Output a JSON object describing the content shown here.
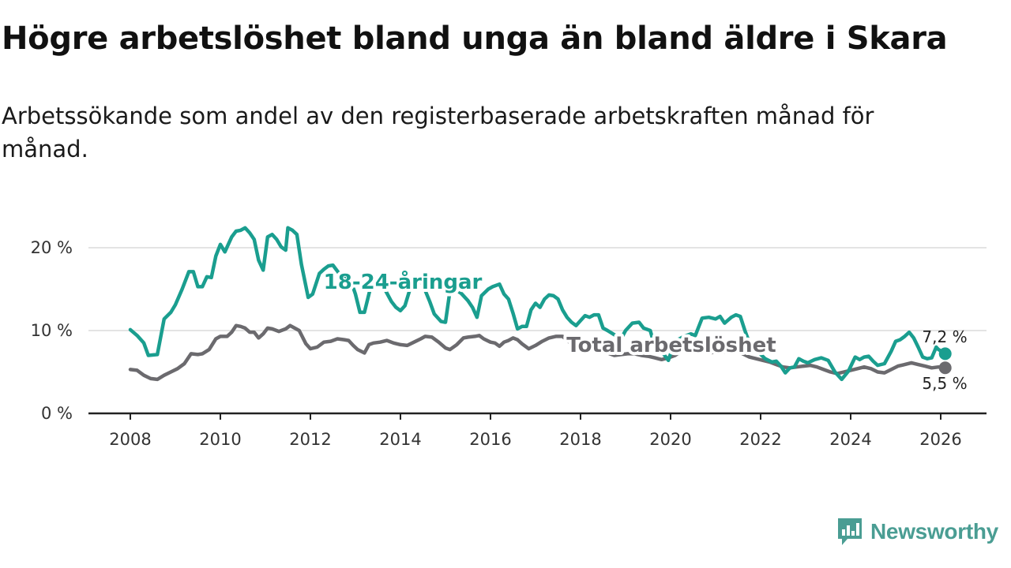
{
  "header": {
    "title": "Högre arbetslöshet bland unga än bland äldre i Skara",
    "subtitle": "Arbetssökande som andel av den registerbaserade arbetskraften månad för månad."
  },
  "brand": {
    "name": "Newsworthy",
    "color": "#4a9d93"
  },
  "chart_data": {
    "type": "line",
    "title": "Högre arbetslöshet bland unga än bland äldre i Skara",
    "xlabel": "",
    "ylabel": "",
    "xlim": [
      2008,
      2026.2
    ],
    "ylim": [
      0,
      22
    ],
    "x_ticks": [
      {
        "value": 2008,
        "label": "2008"
      },
      {
        "value": 2010,
        "label": "2010"
      },
      {
        "value": 2012,
        "label": "2012"
      },
      {
        "value": 2014,
        "label": "2014"
      },
      {
        "value": 2016,
        "label": "2016"
      },
      {
        "value": 2018,
        "label": "2018"
      },
      {
        "value": 2020,
        "label": "2020"
      },
      {
        "value": 2022,
        "label": "2022"
      },
      {
        "value": 2024,
        "label": "2024"
      },
      {
        "value": 2026,
        "label": "2026"
      }
    ],
    "y_ticks": [
      {
        "value": 0,
        "label": "0 %"
      },
      {
        "value": 10,
        "label": "10 %"
      },
      {
        "value": 20,
        "label": "20 %"
      }
    ],
    "grid": true,
    "series": [
      {
        "name": "18-24-åringar",
        "label": "18-24-åringar",
        "color": "#1a9e8f",
        "end_label": "7,2 %",
        "end_value": 7.2,
        "points": [
          [
            2008.0,
            10.1
          ],
          [
            2008.15,
            9.4
          ],
          [
            2008.3,
            8.5
          ],
          [
            2008.4,
            7.0
          ],
          [
            2008.6,
            7.1
          ],
          [
            2008.75,
            11.4
          ],
          [
            2008.9,
            12.2
          ],
          [
            2009.0,
            13.1
          ],
          [
            2009.15,
            15.0
          ],
          [
            2009.3,
            17.1
          ],
          [
            2009.4,
            17.1
          ],
          [
            2009.5,
            15.3
          ],
          [
            2009.6,
            15.3
          ],
          [
            2009.7,
            16.5
          ],
          [
            2009.8,
            16.4
          ],
          [
            2009.9,
            19.0
          ],
          [
            2010.0,
            20.4
          ],
          [
            2010.1,
            19.5
          ],
          [
            2010.25,
            21.3
          ],
          [
            2010.35,
            22.0
          ],
          [
            2010.45,
            22.1
          ],
          [
            2010.55,
            22.4
          ],
          [
            2010.65,
            21.8
          ],
          [
            2010.75,
            21.0
          ],
          [
            2010.85,
            18.5
          ],
          [
            2010.95,
            17.3
          ],
          [
            2011.05,
            21.3
          ],
          [
            2011.15,
            21.6
          ],
          [
            2011.25,
            21.0
          ],
          [
            2011.35,
            20.1
          ],
          [
            2011.45,
            19.7
          ],
          [
            2011.5,
            22.4
          ],
          [
            2011.6,
            22.1
          ],
          [
            2011.7,
            21.6
          ],
          [
            2011.8,
            18.0
          ],
          [
            2011.95,
            14.0
          ],
          [
            2012.05,
            14.4
          ],
          [
            2012.2,
            16.9
          ],
          [
            2012.3,
            17.4
          ],
          [
            2012.4,
            17.8
          ],
          [
            2012.5,
            17.9
          ],
          [
            2012.65,
            16.8
          ],
          [
            2012.8,
            16.5
          ],
          [
            2012.9,
            16.0
          ],
          [
            2013.0,
            14.4
          ],
          [
            2013.1,
            12.2
          ],
          [
            2013.2,
            12.2
          ],
          [
            2013.35,
            15.5
          ],
          [
            2013.5,
            16.0
          ],
          [
            2013.65,
            15.0
          ],
          [
            2013.8,
            13.5
          ],
          [
            2013.9,
            12.8
          ],
          [
            2014.0,
            12.4
          ],
          [
            2014.1,
            13.0
          ],
          [
            2014.25,
            15.7
          ],
          [
            2014.4,
            16.2
          ],
          [
            2014.5,
            15.5
          ],
          [
            2014.65,
            13.5
          ],
          [
            2014.75,
            12.0
          ],
          [
            2014.9,
            11.1
          ],
          [
            2015.0,
            11.0
          ],
          [
            2015.1,
            14.8
          ],
          [
            2015.2,
            15.0
          ],
          [
            2015.35,
            14.5
          ],
          [
            2015.5,
            13.6
          ],
          [
            2015.6,
            12.8
          ],
          [
            2015.7,
            11.6
          ],
          [
            2015.8,
            14.2
          ],
          [
            2015.95,
            15.0
          ],
          [
            2016.05,
            15.3
          ],
          [
            2016.2,
            15.6
          ],
          [
            2016.3,
            14.4
          ],
          [
            2016.4,
            13.8
          ],
          [
            2016.5,
            12.1
          ],
          [
            2016.6,
            10.2
          ],
          [
            2016.7,
            10.5
          ],
          [
            2016.8,
            10.5
          ],
          [
            2016.9,
            12.5
          ],
          [
            2017.0,
            13.3
          ],
          [
            2017.1,
            12.8
          ],
          [
            2017.2,
            13.8
          ],
          [
            2017.3,
            14.3
          ],
          [
            2017.4,
            14.2
          ],
          [
            2017.5,
            13.8
          ],
          [
            2017.6,
            12.5
          ],
          [
            2017.7,
            11.6
          ],
          [
            2017.8,
            11.0
          ],
          [
            2017.9,
            10.6
          ],
          [
            2018.0,
            11.2
          ],
          [
            2018.1,
            11.8
          ],
          [
            2018.2,
            11.6
          ],
          [
            2018.3,
            11.9
          ],
          [
            2018.4,
            11.9
          ],
          [
            2018.5,
            10.3
          ],
          [
            2018.6,
            10.0
          ],
          [
            2018.75,
            9.5
          ],
          [
            2018.9,
            9.0
          ],
          [
            2019.0,
            10.0
          ],
          [
            2019.15,
            10.9
          ],
          [
            2019.3,
            11.0
          ],
          [
            2019.4,
            10.3
          ],
          [
            2019.55,
            10.0
          ],
          [
            2019.65,
            8.0
          ],
          [
            2019.8,
            7.5
          ],
          [
            2019.95,
            6.4
          ],
          [
            2020.1,
            8.8
          ],
          [
            2020.2,
            9.0
          ],
          [
            2020.3,
            9.3
          ],
          [
            2020.45,
            9.6
          ],
          [
            2020.55,
            9.4
          ],
          [
            2020.7,
            11.5
          ],
          [
            2020.85,
            11.6
          ],
          [
            2021.0,
            11.4
          ],
          [
            2021.1,
            11.7
          ],
          [
            2021.2,
            10.9
          ],
          [
            2021.35,
            11.6
          ],
          [
            2021.45,
            11.9
          ],
          [
            2021.55,
            11.7
          ],
          [
            2021.65,
            10.0
          ],
          [
            2021.8,
            7.8
          ],
          [
            2021.95,
            7.4
          ],
          [
            2022.1,
            6.6
          ],
          [
            2022.25,
            6.2
          ],
          [
            2022.35,
            6.3
          ],
          [
            2022.45,
            5.7
          ],
          [
            2022.55,
            4.9
          ],
          [
            2022.65,
            5.5
          ],
          [
            2022.75,
            5.6
          ],
          [
            2022.85,
            6.6
          ],
          [
            2022.95,
            6.3
          ],
          [
            2023.05,
            6.1
          ],
          [
            2023.2,
            6.5
          ],
          [
            2023.35,
            6.7
          ],
          [
            2023.5,
            6.4
          ],
          [
            2023.65,
            5.0
          ],
          [
            2023.8,
            4.1
          ],
          [
            2023.95,
            5.1
          ],
          [
            2024.1,
            6.8
          ],
          [
            2024.2,
            6.5
          ],
          [
            2024.3,
            6.8
          ],
          [
            2024.4,
            6.9
          ],
          [
            2024.5,
            6.3
          ],
          [
            2024.6,
            5.8
          ],
          [
            2024.75,
            6.0
          ],
          [
            2024.9,
            7.5
          ],
          [
            2025.0,
            8.7
          ],
          [
            2025.1,
            8.9
          ],
          [
            2025.2,
            9.3
          ],
          [
            2025.3,
            9.8
          ],
          [
            2025.4,
            9.1
          ],
          [
            2025.5,
            8.0
          ],
          [
            2025.6,
            6.8
          ],
          [
            2025.7,
            6.6
          ],
          [
            2025.8,
            6.7
          ],
          [
            2025.9,
            8.0
          ],
          [
            2025.95,
            7.7
          ],
          [
            2026.05,
            7.4
          ],
          [
            2026.1,
            7.2
          ]
        ]
      },
      {
        "name": "Total arbetslöshet",
        "label": "Total arbetslöshet",
        "color": "#6b6a6e",
        "end_label": "5,5 %",
        "end_value": 5.5,
        "points": [
          [
            2008.0,
            5.3
          ],
          [
            2008.15,
            5.2
          ],
          [
            2008.3,
            4.6
          ],
          [
            2008.45,
            4.2
          ],
          [
            2008.6,
            4.1
          ],
          [
            2008.75,
            4.6
          ],
          [
            2008.9,
            5.0
          ],
          [
            2009.05,
            5.4
          ],
          [
            2009.2,
            6.0
          ],
          [
            2009.35,
            7.2
          ],
          [
            2009.5,
            7.1
          ],
          [
            2009.6,
            7.2
          ],
          [
            2009.75,
            7.7
          ],
          [
            2009.9,
            9.0
          ],
          [
            2010.0,
            9.3
          ],
          [
            2010.15,
            9.3
          ],
          [
            2010.25,
            9.8
          ],
          [
            2010.35,
            10.6
          ],
          [
            2010.45,
            10.5
          ],
          [
            2010.55,
            10.3
          ],
          [
            2010.65,
            9.8
          ],
          [
            2010.75,
            9.8
          ],
          [
            2010.85,
            9.1
          ],
          [
            2010.95,
            9.6
          ],
          [
            2011.05,
            10.3
          ],
          [
            2011.15,
            10.2
          ],
          [
            2011.3,
            9.9
          ],
          [
            2011.45,
            10.2
          ],
          [
            2011.55,
            10.6
          ],
          [
            2011.65,
            10.3
          ],
          [
            2011.75,
            10.0
          ],
          [
            2011.9,
            8.4
          ],
          [
            2012.0,
            7.8
          ],
          [
            2012.15,
            8.0
          ],
          [
            2012.3,
            8.6
          ],
          [
            2012.45,
            8.7
          ],
          [
            2012.6,
            9.0
          ],
          [
            2012.75,
            8.9
          ],
          [
            2012.85,
            8.8
          ],
          [
            2012.95,
            8.2
          ],
          [
            2013.05,
            7.7
          ],
          [
            2013.2,
            7.3
          ],
          [
            2013.3,
            8.3
          ],
          [
            2013.4,
            8.5
          ],
          [
            2013.55,
            8.6
          ],
          [
            2013.7,
            8.8
          ],
          [
            2013.85,
            8.5
          ],
          [
            2014.0,
            8.3
          ],
          [
            2014.15,
            8.2
          ],
          [
            2014.3,
            8.6
          ],
          [
            2014.45,
            9.0
          ],
          [
            2014.55,
            9.3
          ],
          [
            2014.7,
            9.2
          ],
          [
            2014.85,
            8.6
          ],
          [
            2015.0,
            7.9
          ],
          [
            2015.1,
            7.7
          ],
          [
            2015.25,
            8.3
          ],
          [
            2015.4,
            9.1
          ],
          [
            2015.5,
            9.2
          ],
          [
            2015.65,
            9.3
          ],
          [
            2015.75,
            9.4
          ],
          [
            2015.85,
            9.0
          ],
          [
            2016.0,
            8.6
          ],
          [
            2016.1,
            8.5
          ],
          [
            2016.2,
            8.1
          ],
          [
            2016.3,
            8.6
          ],
          [
            2016.4,
            8.8
          ],
          [
            2016.5,
            9.1
          ],
          [
            2016.6,
            8.9
          ],
          [
            2016.7,
            8.4
          ],
          [
            2016.85,
            7.8
          ],
          [
            2017.0,
            8.2
          ],
          [
            2017.15,
            8.7
          ],
          [
            2017.3,
            9.1
          ],
          [
            2017.45,
            9.3
          ],
          [
            2017.6,
            9.3
          ],
          [
            2017.75,
            8.6
          ],
          [
            2017.9,
            7.9
          ],
          [
            2018.0,
            8.0
          ],
          [
            2018.15,
            8.1
          ],
          [
            2018.3,
            8.0
          ],
          [
            2018.45,
            7.8
          ],
          [
            2018.6,
            7.3
          ],
          [
            2018.75,
            7.0
          ],
          [
            2018.9,
            7.1
          ],
          [
            2019.05,
            7.2
          ],
          [
            2019.2,
            7.2
          ],
          [
            2019.35,
            7.0
          ],
          [
            2019.5,
            6.9
          ],
          [
            2019.65,
            6.7
          ],
          [
            2019.8,
            6.5
          ],
          [
            2019.95,
            6.7
          ],
          [
            2020.1,
            7.0
          ],
          [
            2020.25,
            7.6
          ],
          [
            2020.4,
            8.0
          ],
          [
            2020.55,
            7.9
          ],
          [
            2020.7,
            7.5
          ],
          [
            2020.85,
            7.3
          ],
          [
            2021.0,
            7.4
          ],
          [
            2021.15,
            7.4
          ],
          [
            2021.3,
            7.5
          ],
          [
            2021.45,
            7.6
          ],
          [
            2021.6,
            7.2
          ],
          [
            2021.75,
            6.8
          ],
          [
            2021.9,
            6.6
          ],
          [
            2022.05,
            6.4
          ],
          [
            2022.2,
            6.2
          ],
          [
            2022.35,
            5.9
          ],
          [
            2022.5,
            5.6
          ],
          [
            2022.65,
            5.5
          ],
          [
            2022.8,
            5.6
          ],
          [
            2022.95,
            5.7
          ],
          [
            2023.1,
            5.8
          ],
          [
            2023.25,
            5.6
          ],
          [
            2023.4,
            5.3
          ],
          [
            2023.55,
            5.0
          ],
          [
            2023.7,
            4.8
          ],
          [
            2023.85,
            5.0
          ],
          [
            2024.0,
            5.2
          ],
          [
            2024.15,
            5.4
          ],
          [
            2024.3,
            5.6
          ],
          [
            2024.45,
            5.4
          ],
          [
            2024.6,
            5.0
          ],
          [
            2024.75,
            4.9
          ],
          [
            2024.9,
            5.3
          ],
          [
            2025.05,
            5.7
          ],
          [
            2025.2,
            5.9
          ],
          [
            2025.35,
            6.1
          ],
          [
            2025.5,
            5.9
          ],
          [
            2025.65,
            5.7
          ],
          [
            2025.8,
            5.5
          ],
          [
            2025.95,
            5.6
          ],
          [
            2026.05,
            5.5
          ],
          [
            2026.1,
            5.5
          ]
        ]
      }
    ]
  }
}
